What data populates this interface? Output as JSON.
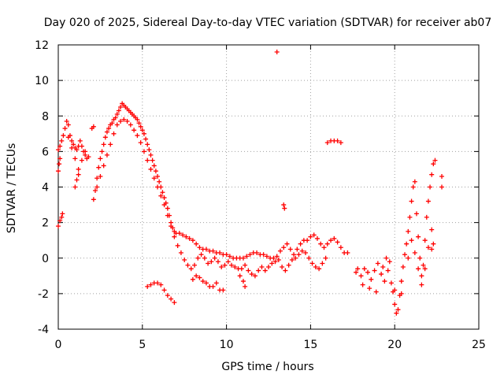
{
  "chart_data": {
    "type": "scatter",
    "title": "Day 020 of 2025, Sidereal Day-to-day VTEC variation (SDTVAR) for receiver ab07",
    "xlabel": "GPS time / hours",
    "ylabel": "SDTVAR / TECUs",
    "xlim": [
      0,
      25
    ],
    "ylim": [
      -4,
      12
    ],
    "xticks": [
      0,
      5,
      10,
      15,
      20,
      25
    ],
    "yticks": [
      -4,
      -2,
      0,
      2,
      4,
      6,
      8,
      10,
      12
    ],
    "grid": true,
    "marker": "+",
    "color": "#ff0000",
    "series": [
      {
        "name": "main",
        "points": [
          [
            0.0,
            6.1
          ],
          [
            0.1,
            6.3
          ],
          [
            0.2,
            6.6
          ],
          [
            0.3,
            6.9
          ],
          [
            0.4,
            7.3
          ],
          [
            0.5,
            7.7
          ],
          [
            0.6,
            7.5
          ],
          [
            0.7,
            6.9
          ],
          [
            0.8,
            6.6
          ],
          [
            0.9,
            6.4
          ],
          [
            1.0,
            6.2
          ],
          [
            1.1,
            6.1
          ],
          [
            1.2,
            6.3
          ],
          [
            1.3,
            6.6
          ],
          [
            1.4,
            6.3
          ],
          [
            1.5,
            6.0
          ],
          [
            1.6,
            5.8
          ],
          [
            1.7,
            5.6
          ],
          [
            2.1,
            3.3
          ],
          [
            2.2,
            3.8
          ],
          [
            2.3,
            4.5
          ],
          [
            2.4,
            5.1
          ],
          [
            2.5,
            5.6
          ],
          [
            2.6,
            6.0
          ],
          [
            2.7,
            6.4
          ],
          [
            2.8,
            6.8
          ],
          [
            2.9,
            7.1
          ],
          [
            3.0,
            7.3
          ],
          [
            3.1,
            7.5
          ],
          [
            3.2,
            7.6
          ],
          [
            3.3,
            7.8
          ],
          [
            3.4,
            7.9
          ],
          [
            3.5,
            8.1
          ],
          [
            3.6,
            8.3
          ],
          [
            3.7,
            8.5
          ],
          [
            3.8,
            8.7
          ],
          [
            3.9,
            8.6
          ],
          [
            4.0,
            8.5
          ],
          [
            4.1,
            8.4
          ],
          [
            4.2,
            8.3
          ],
          [
            4.3,
            8.2
          ],
          [
            4.4,
            8.1
          ],
          [
            4.5,
            8.0
          ],
          [
            4.6,
            7.9
          ],
          [
            4.7,
            7.8
          ],
          [
            4.8,
            7.6
          ],
          [
            4.9,
            7.4
          ],
          [
            5.0,
            7.2
          ],
          [
            5.1,
            7.0
          ],
          [
            5.2,
            6.7
          ],
          [
            5.3,
            6.4
          ],
          [
            5.4,
            6.1
          ],
          [
            5.5,
            5.8
          ],
          [
            5.6,
            5.5
          ],
          [
            5.7,
            5.2
          ],
          [
            5.8,
            4.9
          ],
          [
            5.9,
            4.6
          ],
          [
            6.0,
            4.3
          ],
          [
            6.1,
            4.0
          ],
          [
            6.2,
            3.7
          ],
          [
            6.3,
            3.4
          ],
          [
            6.4,
            3.1
          ],
          [
            6.5,
            2.8
          ],
          [
            6.6,
            2.4
          ],
          [
            6.7,
            2.0
          ],
          [
            6.8,
            1.7
          ],
          [
            6.9,
            1.5
          ],
          [
            7.0,
            1.4
          ],
          [
            7.2,
            1.4
          ],
          [
            7.4,
            1.3
          ],
          [
            7.6,
            1.2
          ],
          [
            7.8,
            1.1
          ],
          [
            8.0,
            1.0
          ],
          [
            8.2,
            0.8
          ],
          [
            8.4,
            0.6
          ],
          [
            8.6,
            0.5
          ],
          [
            8.8,
            0.5
          ],
          [
            9.0,
            0.4
          ],
          [
            9.2,
            0.4
          ],
          [
            9.4,
            0.3
          ],
          [
            9.6,
            0.3
          ],
          [
            9.8,
            0.2
          ],
          [
            10.0,
            0.2
          ],
          [
            10.2,
            0.1
          ],
          [
            10.4,
            0.0
          ],
          [
            10.6,
            0.0
          ],
          [
            10.8,
            0.0
          ],
          [
            11.0,
            0.0
          ],
          [
            11.2,
            0.1
          ],
          [
            11.4,
            0.2
          ],
          [
            11.6,
            0.3
          ],
          [
            11.8,
            0.3
          ],
          [
            12.0,
            0.2
          ],
          [
            12.2,
            0.2
          ],
          [
            12.4,
            0.1
          ],
          [
            12.6,
            0.0
          ],
          [
            12.8,
            0.0
          ],
          [
            13.0,
            0.1
          ],
          [
            13.2,
            0.4
          ],
          [
            13.4,
            0.6
          ],
          [
            13.6,
            0.8
          ],
          [
            13.8,
            0.5
          ],
          [
            14.0,
            0.2
          ],
          [
            14.2,
            0.5
          ],
          [
            14.4,
            0.8
          ],
          [
            14.6,
            1.0
          ],
          [
            14.8,
            1.0
          ],
          [
            15.0,
            1.2
          ],
          [
            15.2,
            1.3
          ],
          [
            15.4,
            1.1
          ],
          [
            15.6,
            0.8
          ],
          [
            15.8,
            0.6
          ],
          [
            16.0,
            0.8
          ],
          [
            16.2,
            1.0
          ],
          [
            16.4,
            1.1
          ],
          [
            16.6,
            0.9
          ],
          [
            16.8,
            0.6
          ],
          [
            17.0,
            0.3
          ],
          [
            17.2,
            0.3
          ]
        ]
      },
      {
        "name": "main-lower",
        "points": [
          [
            0.6,
            6.8
          ],
          [
            0.8,
            6.2
          ],
          [
            1.0,
            5.6
          ],
          [
            1.2,
            5.0
          ],
          [
            1.4,
            5.5
          ],
          [
            1.6,
            6.0
          ],
          [
            1.8,
            5.7
          ],
          [
            1.0,
            4.0
          ],
          [
            1.1,
            4.4
          ],
          [
            1.2,
            4.7
          ],
          [
            2.3,
            4.0
          ],
          [
            2.5,
            4.6
          ],
          [
            2.7,
            5.2
          ],
          [
            2.9,
            5.8
          ],
          [
            3.1,
            6.4
          ],
          [
            3.3,
            7.0
          ],
          [
            3.5,
            7.5
          ],
          [
            3.7,
            7.7
          ],
          [
            3.9,
            7.8
          ],
          [
            4.1,
            7.7
          ],
          [
            4.3,
            7.5
          ],
          [
            4.5,
            7.2
          ],
          [
            4.7,
            6.9
          ],
          [
            4.9,
            6.5
          ],
          [
            5.1,
            6.0
          ],
          [
            5.3,
            5.5
          ],
          [
            5.5,
            5.0
          ],
          [
            5.7,
            4.5
          ],
          [
            5.9,
            4.0
          ],
          [
            6.1,
            3.5
          ],
          [
            6.3,
            3.0
          ],
          [
            6.5,
            2.4
          ],
          [
            6.7,
            1.8
          ],
          [
            6.9,
            1.2
          ],
          [
            7.1,
            0.7
          ],
          [
            7.3,
            0.3
          ],
          [
            7.5,
            -0.1
          ],
          [
            7.7,
            -0.4
          ],
          [
            7.9,
            -0.6
          ],
          [
            8.1,
            -0.4
          ],
          [
            8.3,
            0.0
          ],
          [
            8.5,
            0.2
          ],
          [
            8.7,
            0.0
          ],
          [
            8.9,
            -0.3
          ],
          [
            9.1,
            -0.2
          ],
          [
            9.3,
            0.0
          ],
          [
            9.5,
            -0.2
          ],
          [
            9.7,
            -0.5
          ],
          [
            9.9,
            -0.4
          ],
          [
            10.1,
            -0.2
          ],
          [
            10.3,
            -0.4
          ],
          [
            10.5,
            -0.5
          ],
          [
            10.7,
            -0.6
          ],
          [
            10.9,
            -0.6
          ],
          [
            11.1,
            -0.4
          ],
          [
            11.3,
            -0.7
          ],
          [
            11.5,
            -0.9
          ],
          [
            11.7,
            -1.0
          ],
          [
            11.9,
            -0.7
          ],
          [
            12.1,
            -0.5
          ],
          [
            12.3,
            -0.7
          ],
          [
            12.5,
            -0.5
          ],
          [
            12.7,
            -0.3
          ],
          [
            12.9,
            -0.2
          ],
          [
            13.1,
            -0.1
          ],
          [
            13.3,
            -0.5
          ],
          [
            13.5,
            -0.7
          ],
          [
            13.7,
            -0.4
          ],
          [
            13.9,
            -0.1
          ],
          [
            14.1,
            0.0
          ],
          [
            14.3,
            0.2
          ],
          [
            14.5,
            0.4
          ],
          [
            14.7,
            0.3
          ],
          [
            14.9,
            0.0
          ],
          [
            15.1,
            -0.3
          ],
          [
            15.3,
            -0.5
          ],
          [
            15.5,
            -0.6
          ],
          [
            15.7,
            -0.3
          ],
          [
            15.9,
            0.0
          ]
        ]
      },
      {
        "name": "dip-branch",
        "points": [
          [
            8.0,
            -1.2
          ],
          [
            8.2,
            -1.0
          ],
          [
            8.4,
            -1.1
          ],
          [
            8.6,
            -1.3
          ],
          [
            8.8,
            -1.4
          ],
          [
            9.0,
            -1.6
          ],
          [
            9.2,
            -1.6
          ],
          [
            9.4,
            -1.4
          ],
          [
            9.6,
            -1.8
          ],
          [
            9.8,
            -1.8
          ],
          [
            10.8,
            -1.0
          ],
          [
            11.0,
            -1.3
          ],
          [
            11.1,
            -1.6
          ]
        ]
      },
      {
        "name": "early-branch",
        "points": [
          [
            0.0,
            1.8
          ],
          [
            0.1,
            2.1
          ],
          [
            0.2,
            2.3
          ],
          [
            0.25,
            2.5
          ],
          [
            0.0,
            4.9
          ],
          [
            0.05,
            5.3
          ],
          [
            0.1,
            5.6
          ],
          [
            2.1,
            7.4
          ],
          [
            2.0,
            7.3
          ]
        ]
      },
      {
        "name": "low-branch",
        "points": [
          [
            5.3,
            -1.6
          ],
          [
            5.5,
            -1.5
          ],
          [
            5.7,
            -1.4
          ],
          [
            5.9,
            -1.4
          ],
          [
            6.1,
            -1.5
          ],
          [
            6.3,
            -1.8
          ],
          [
            6.5,
            -2.1
          ],
          [
            6.7,
            -2.3
          ],
          [
            6.9,
            -2.5
          ]
        ]
      },
      {
        "name": "isolated",
        "points": [
          [
            13.0,
            11.6
          ],
          [
            13.4,
            3.0
          ],
          [
            13.45,
            2.8
          ],
          [
            16.0,
            6.5
          ],
          [
            16.2,
            6.6
          ],
          [
            16.4,
            6.6
          ],
          [
            16.6,
            6.6
          ],
          [
            16.8,
            6.5
          ]
        ]
      },
      {
        "name": "late",
        "points": [
          [
            17.8,
            -0.6
          ],
          [
            18.0,
            -1.0
          ],
          [
            18.2,
            -0.6
          ],
          [
            18.4,
            -0.8
          ],
          [
            18.6,
            -1.2
          ],
          [
            18.8,
            -0.7
          ],
          [
            19.0,
            -0.3
          ],
          [
            19.2,
            -0.9
          ],
          [
            19.4,
            -1.3
          ],
          [
            19.6,
            -0.7
          ],
          [
            19.8,
            -1.4
          ],
          [
            19.9,
            -1.9
          ],
          [
            20.0,
            -2.6
          ],
          [
            20.1,
            -3.1
          ],
          [
            20.2,
            -2.9
          ],
          [
            20.3,
            -2.1
          ],
          [
            20.4,
            -1.3
          ],
          [
            20.5,
            -0.5
          ],
          [
            20.6,
            0.2
          ],
          [
            20.7,
            0.8
          ],
          [
            20.8,
            1.5
          ],
          [
            20.9,
            2.3
          ],
          [
            21.0,
            3.2
          ],
          [
            21.1,
            4.0
          ],
          [
            21.2,
            4.3
          ],
          [
            21.3,
            2.5
          ],
          [
            21.4,
            1.2
          ],
          [
            21.5,
            0.0
          ],
          [
            21.6,
            -1.0
          ],
          [
            21.7,
            -0.4
          ],
          [
            21.8,
            1.0
          ],
          [
            21.9,
            2.3
          ],
          [
            22.0,
            3.2
          ],
          [
            22.1,
            4.0
          ],
          [
            22.2,
            4.7
          ],
          [
            22.3,
            5.3
          ],
          [
            22.4,
            5.5
          ],
          [
            22.2,
            0.5
          ],
          [
            22.8,
            4.6
          ],
          [
            22.8,
            4.0
          ],
          [
            17.7,
            -0.8
          ],
          [
            18.1,
            -1.5
          ],
          [
            18.5,
            -1.7
          ],
          [
            18.9,
            -1.9
          ],
          [
            19.3,
            -0.5
          ],
          [
            19.5,
            0.0
          ],
          [
            19.7,
            -0.2
          ],
          [
            20.0,
            -1.8
          ],
          [
            20.4,
            -2.0
          ],
          [
            20.8,
            0.0
          ],
          [
            21.0,
            1.0
          ],
          [
            21.2,
            0.3
          ],
          [
            21.4,
            -0.6
          ],
          [
            21.6,
            -1.5
          ],
          [
            21.8,
            -0.6
          ],
          [
            22.0,
            0.6
          ],
          [
            22.2,
            1.6
          ],
          [
            22.3,
            0.8
          ]
        ]
      }
    ]
  }
}
